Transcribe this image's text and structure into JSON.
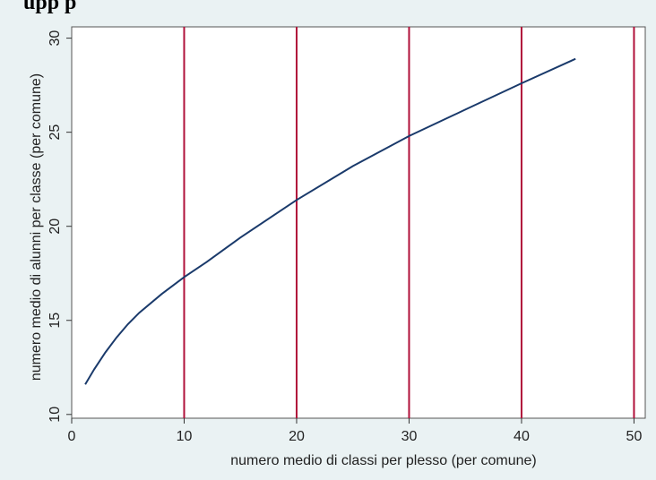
{
  "header": {
    "title_fragment": "upp                                    p"
  },
  "chart_data": {
    "type": "line",
    "title": "",
    "xlabel": "numero medio di classi per plesso (per comune)",
    "ylabel": "numero medio di alunni per classe (per comune)",
    "xlim": [
      0,
      51
    ],
    "ylim": [
      9.8,
      30.6
    ],
    "xticks": [
      0,
      10,
      20,
      30,
      40,
      50
    ],
    "yticks": [
      10,
      15,
      20,
      25,
      30
    ],
    "grid": false,
    "reference_lines_x": [
      10,
      20,
      30,
      40,
      50
    ],
    "colors": {
      "curve": "#1a3a6b",
      "reference_lines": "#b0103a",
      "outer_background": "#eaf2f3",
      "plot_background": "#ffffff"
    },
    "series": [
      {
        "x": [
          1.2,
          2,
          3,
          4,
          5,
          6,
          8,
          10,
          12,
          15,
          20,
          25,
          30,
          35,
          40,
          44.8
        ],
        "y": [
          11.6,
          12.4,
          13.3,
          14.1,
          14.8,
          15.4,
          16.4,
          17.3,
          18.1,
          19.4,
          21.4,
          23.2,
          24.8,
          26.2,
          27.6,
          28.9
        ]
      }
    ]
  }
}
